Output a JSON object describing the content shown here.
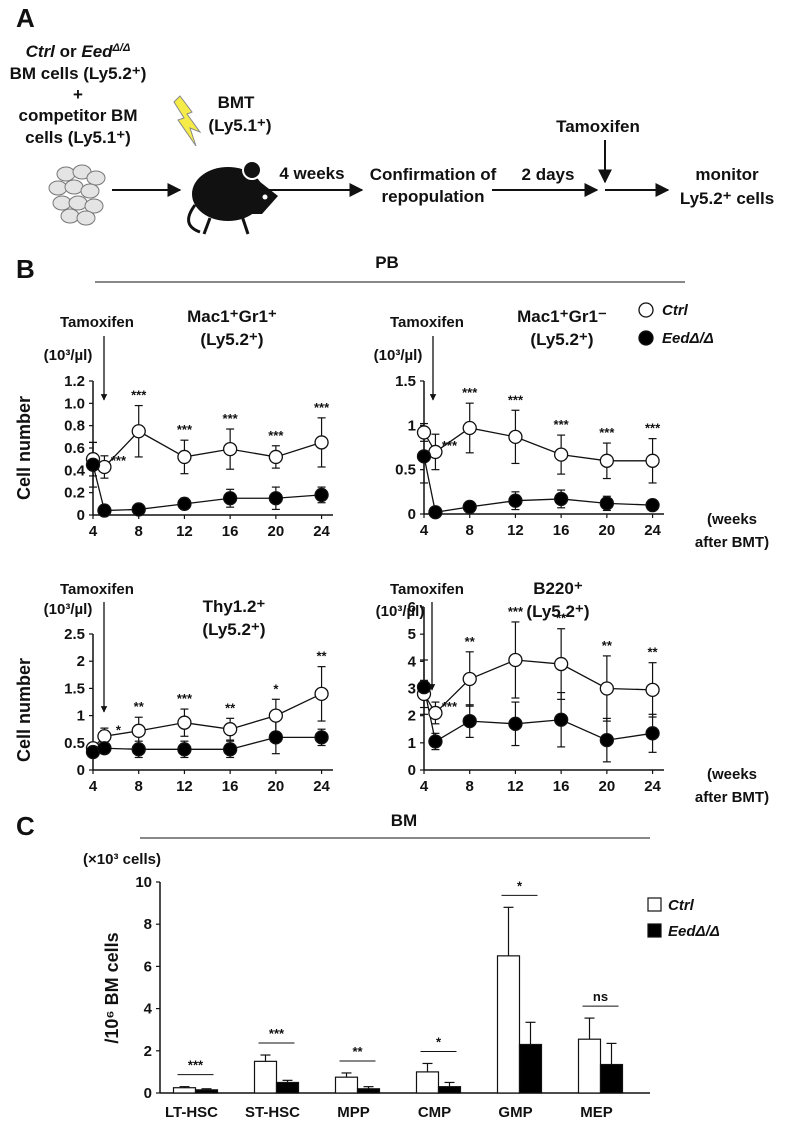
{
  "diagram": {
    "panel_label": "A",
    "donor_lines": [
      [
        "Ctrl",
        " or ",
        "Eed",
        "Δ/Δ"
      ],
      [
        "BM cells (Ly5.2⁺)"
      ],
      [
        "+"
      ],
      [
        "competitor BM"
      ],
      [
        "cells (Ly5.1⁺)"
      ]
    ],
    "transplant": [
      "BMT",
      "(Ly5.1⁺)"
    ],
    "interval_1": "4 weeks",
    "confirmation": [
      "Confirmation of",
      "repopulation"
    ],
    "interval_2": "2 days",
    "treatment": "Tamoxifen",
    "readout": [
      "monitor",
      "Ly5.2⁺ cells"
    ]
  },
  "panel_b": {
    "label": "B",
    "title": "PB"
  },
  "panel_c": {
    "label": "C"
  },
  "chart_data": [
    {
      "type": "line",
      "title": [
        "Mac1⁺Gr1⁺",
        "(Ly5.2⁺)"
      ],
      "y_unit": "(10³/µl)",
      "y_label": "Cell number",
      "annotation": "Tamoxifen",
      "x": [
        4,
        5,
        8,
        12,
        16,
        20,
        24
      ],
      "xlim": [
        4,
        25
      ],
      "xticks": [
        4,
        8,
        12,
        16,
        20,
        24
      ],
      "ylim": [
        0,
        1.2
      ],
      "yticks": [
        0,
        0.2,
        0.4,
        0.6,
        0.8,
        {
          "value": 1,
          "label": "1.0"
        },
        1.2
      ],
      "significance": [
        null,
        "***",
        "***",
        "***",
        "***",
        "***",
        "***"
      ],
      "series": [
        {
          "color": "#ffffff",
          "values": [
            0.5,
            0.43,
            0.75,
            0.52,
            0.59,
            0.52,
            0.65
          ],
          "errors": [
            0.15,
            0.1,
            0.23,
            0.15,
            0.18,
            0.1,
            0.22
          ]
        },
        {
          "color": "#000000",
          "values": [
            0.45,
            0.04,
            0.05,
            0.1,
            0.15,
            0.15,
            0.18
          ],
          "errors": [
            0.2,
            0.02,
            0.02,
            0.05,
            0.08,
            0.1,
            0.07
          ]
        }
      ]
    },
    {
      "type": "line",
      "title": [
        "Mac1⁺Gr1⁻",
        "(Ly5.2⁺)"
      ],
      "y_unit": "(10³/µl)",
      "annotation": "Tamoxifen",
      "x_label": [
        "(weeks",
        "after BMT)"
      ],
      "x": [
        4,
        5,
        8,
        12,
        16,
        20,
        24
      ],
      "xlim": [
        4,
        25
      ],
      "xticks": [
        4,
        8,
        12,
        16,
        20,
        24
      ],
      "ylim": [
        0,
        1.5
      ],
      "yticks": [
        0,
        0.5,
        1,
        1.5
      ],
      "significance": [
        null,
        "***",
        "***",
        "***",
        "***",
        "***",
        "***"
      ],
      "legend": "upper right",
      "series": [
        {
          "name": "Ctrl",
          "color": "#ffffff",
          "values": [
            0.92,
            0.7,
            0.97,
            0.87,
            0.67,
            0.6,
            0.6
          ],
          "errors": [
            0.1,
            0.2,
            0.28,
            0.3,
            0.22,
            0.2,
            0.25
          ]
        },
        {
          "name": "EedΔ/Δ",
          "color": "#000000",
          "values": [
            0.65,
            0.02,
            0.08,
            0.15,
            0.17,
            0.12,
            0.1
          ],
          "errors": [
            0.3,
            0.02,
            0.03,
            0.1,
            0.1,
            0.08,
            0.05
          ]
        }
      ]
    },
    {
      "type": "line",
      "title": [
        "Thy1.2⁺",
        "(Ly5.2⁺)"
      ],
      "y_unit": "(10³/µl)",
      "y_label": "Cell number",
      "annotation": "Tamoxifen",
      "x": [
        4,
        5,
        8,
        12,
        16,
        20,
        24
      ],
      "xlim": [
        4,
        25
      ],
      "xticks": [
        4,
        8,
        12,
        16,
        20,
        24
      ],
      "ylim": [
        0,
        2.5
      ],
      "yticks": [
        0,
        0.5,
        1,
        1.5,
        2,
        2.5
      ],
      "significance": [
        null,
        "*",
        "**",
        "***",
        "**",
        "*",
        "**"
      ],
      "series": [
        {
          "color": "#ffffff",
          "values": [
            0.4,
            0.62,
            0.72,
            0.87,
            0.75,
            1.0,
            1.4
          ],
          "errors": [
            0.1,
            0.15,
            0.25,
            0.25,
            0.2,
            0.3,
            0.5
          ]
        },
        {
          "color": "#000000",
          "values": [
            0.33,
            0.4,
            0.38,
            0.38,
            0.38,
            0.6,
            0.6
          ],
          "errors": [
            0.1,
            0.1,
            0.15,
            0.15,
            0.15,
            0.3,
            0.15
          ]
        }
      ]
    },
    {
      "type": "line",
      "title": [
        "B220⁺",
        "(Ly5.2⁺)"
      ],
      "y_unit": "(10³/µl)",
      "annotation": "Tamoxifen",
      "x_label": [
        "(weeks",
        "after BMT)"
      ],
      "x": [
        4,
        5,
        8,
        12,
        16,
        20,
        24
      ],
      "xlim": [
        4,
        25
      ],
      "xticks": [
        4,
        8,
        12,
        16,
        20,
        24
      ],
      "ylim": [
        0,
        6
      ],
      "yticks": [
        0,
        1,
        2,
        3,
        4,
        5,
        6
      ],
      "significance": [
        null,
        "***",
        "**",
        "***",
        "**",
        "**",
        "**"
      ],
      "series": [
        {
          "color": "#ffffff",
          "values": [
            2.8,
            2.1,
            3.35,
            4.05,
            3.9,
            3.0,
            2.95
          ],
          "errors": [
            0.5,
            0.4,
            1.0,
            1.4,
            1.3,
            1.2,
            1.0
          ]
        },
        {
          "color": "#000000",
          "values": [
            3.05,
            1.05,
            1.8,
            1.7,
            1.85,
            1.1,
            1.35
          ],
          "errors": [
            1.0,
            0.3,
            0.6,
            0.8,
            1.0,
            0.8,
            0.7
          ]
        }
      ]
    },
    {
      "type": "bar",
      "title": "BM",
      "y_unit": "(×10³ cells)",
      "y_label": "/10⁶ BM cells",
      "categories": [
        "LT-HSC",
        "ST-HSC",
        "MPP",
        "CMP",
        "GMP",
        "MEP"
      ],
      "ylim": [
        0,
        10
      ],
      "yticks": [
        0,
        2,
        4,
        6,
        8,
        10
      ],
      "significance": [
        "***",
        "***",
        "**",
        "*",
        "*",
        "ns"
      ],
      "legend": "upper right",
      "series": [
        {
          "name": "Ctrl",
          "color": "#ffffff",
          "values": [
            0.25,
            1.5,
            0.75,
            1.0,
            6.5,
            2.55
          ],
          "errors": [
            0.05,
            0.3,
            0.2,
            0.4,
            2.3,
            1.0
          ]
        },
        {
          "name": "EedΔ/Δ",
          "color": "#000000",
          "values": [
            0.15,
            0.5,
            0.2,
            0.3,
            2.3,
            1.35
          ],
          "errors": [
            0.05,
            0.1,
            0.1,
            0.2,
            1.05,
            1.0
          ]
        }
      ]
    }
  ]
}
